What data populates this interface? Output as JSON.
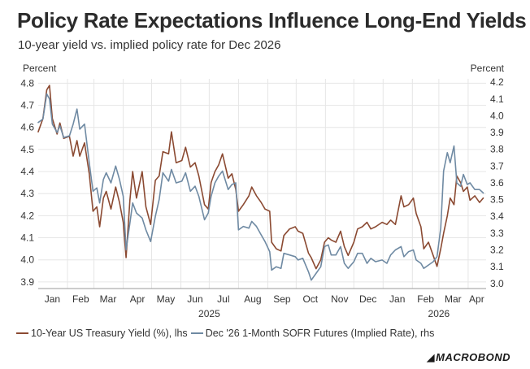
{
  "title": "Policy Rate Expectations Influence Long-End Yields",
  "subtitle": "10-year yield vs. implied policy rate for Dec 2026",
  "brand": "MACROBOND",
  "chart_data": {
    "type": "line",
    "left_axis_label": "Percent",
    "right_axis_label": "Percent",
    "ylim_left": [
      3.87,
      4.82
    ],
    "ylim_right": [
      2.97,
      4.22
    ],
    "yticks_left": [
      "3.9",
      "4.0",
      "4.1",
      "4.2",
      "4.3",
      "4.4",
      "4.5",
      "4.6",
      "4.7",
      "4.8"
    ],
    "yticks_right": [
      "3.0",
      "3.1",
      "3.2",
      "3.3",
      "3.4",
      "3.5",
      "3.6",
      "3.7",
      "3.8",
      "3.9",
      "4.0",
      "4.1",
      "4.2"
    ],
    "xlim": [
      "2025-01-01",
      "2026-04-20"
    ],
    "month_labels": [
      "Jan",
      "Feb",
      "Mar",
      "Apr",
      "May",
      "Jun",
      "Jul",
      "Aug",
      "Sep",
      "Oct",
      "Nov",
      "Dec",
      "Jan",
      "Feb",
      "Mar",
      "Apr"
    ],
    "year_labels": [
      {
        "label": "2025",
        "date": "2025-07-01"
      },
      {
        "label": "2026",
        "date": "2026-03-01"
      }
    ],
    "grid": true,
    "series": [
      {
        "name": "10-Year US Treasury Yield (%), lhs",
        "axis": "left",
        "color": "#8b4a32",
        "points": [
          [
            "2025-01-01",
            4.58
          ],
          [
            "2025-01-06",
            4.64
          ],
          [
            "2025-01-10",
            4.77
          ],
          [
            "2025-01-13",
            4.79
          ],
          [
            "2025-01-16",
            4.64
          ],
          [
            "2025-01-21",
            4.57
          ],
          [
            "2025-01-24",
            4.62
          ],
          [
            "2025-01-28",
            4.55
          ],
          [
            "2025-02-03",
            4.56
          ],
          [
            "2025-02-07",
            4.47
          ],
          [
            "2025-02-11",
            4.54
          ],
          [
            "2025-02-14",
            4.47
          ],
          [
            "2025-02-19",
            4.53
          ],
          [
            "2025-02-24",
            4.39
          ],
          [
            "2025-02-28",
            4.22
          ],
          [
            "2025-03-04",
            4.24
          ],
          [
            "2025-03-07",
            4.15
          ],
          [
            "2025-03-11",
            4.28
          ],
          [
            "2025-03-14",
            4.31
          ],
          [
            "2025-03-19",
            4.23
          ],
          [
            "2025-03-24",
            4.33
          ],
          [
            "2025-03-28",
            4.26
          ],
          [
            "2025-04-01",
            4.17
          ],
          [
            "2025-04-04",
            4.01
          ],
          [
            "2025-04-08",
            4.27
          ],
          [
            "2025-04-11",
            4.4
          ],
          [
            "2025-04-15",
            4.28
          ],
          [
            "2025-04-21",
            4.4
          ],
          [
            "2025-04-25",
            4.24
          ],
          [
            "2025-04-30",
            4.16
          ],
          [
            "2025-05-05",
            4.36
          ],
          [
            "2025-05-09",
            4.38
          ],
          [
            "2025-05-13",
            4.49
          ],
          [
            "2025-05-19",
            4.48
          ],
          [
            "2025-05-22",
            4.58
          ],
          [
            "2025-05-27",
            4.44
          ],
          [
            "2025-06-02",
            4.45
          ],
          [
            "2025-06-06",
            4.51
          ],
          [
            "2025-06-11",
            4.42
          ],
          [
            "2025-06-16",
            4.44
          ],
          [
            "2025-06-20",
            4.38
          ],
          [
            "2025-06-26",
            4.25
          ],
          [
            "2025-06-30",
            4.23
          ],
          [
            "2025-07-03",
            4.35
          ],
          [
            "2025-07-07",
            4.4
          ],
          [
            "2025-07-11",
            4.43
          ],
          [
            "2025-07-15",
            4.48
          ],
          [
            "2025-07-21",
            4.37
          ],
          [
            "2025-07-25",
            4.39
          ],
          [
            "2025-07-29",
            4.32
          ],
          [
            "2025-08-01",
            4.22
          ],
          [
            "2025-08-06",
            4.25
          ],
          [
            "2025-08-12",
            4.29
          ],
          [
            "2025-08-15",
            4.33
          ],
          [
            "2025-08-20",
            4.29
          ],
          [
            "2025-08-25",
            4.26
          ],
          [
            "2025-08-29",
            4.23
          ],
          [
            "2025-09-03",
            4.22
          ],
          [
            "2025-09-05",
            4.08
          ],
          [
            "2025-09-10",
            4.05
          ],
          [
            "2025-09-15",
            4.04
          ],
          [
            "2025-09-18",
            4.11
          ],
          [
            "2025-09-24",
            4.14
          ],
          [
            "2025-09-30",
            4.15
          ],
          [
            "2025-10-03",
            4.13
          ],
          [
            "2025-10-08",
            4.12
          ],
          [
            "2025-10-14",
            4.03
          ],
          [
            "2025-10-17",
            4.01
          ],
          [
            "2025-10-22",
            3.96
          ],
          [
            "2025-10-27",
            4.0
          ],
          [
            "2025-10-31",
            4.08
          ],
          [
            "2025-11-04",
            4.1
          ],
          [
            "2025-11-07",
            4.09
          ],
          [
            "2025-11-12",
            4.08
          ],
          [
            "2025-11-17",
            4.13
          ],
          [
            "2025-11-21",
            4.06
          ],
          [
            "2025-11-25",
            4.02
          ],
          [
            "2025-12-01",
            4.08
          ],
          [
            "2025-12-05",
            4.14
          ],
          [
            "2025-12-10",
            4.15
          ],
          [
            "2025-12-15",
            4.17
          ],
          [
            "2025-12-19",
            4.14
          ],
          [
            "2025-12-24",
            4.15
          ],
          [
            "2025-12-31",
            4.17
          ],
          [
            "2026-01-05",
            4.16
          ],
          [
            "2026-01-09",
            4.18
          ],
          [
            "2026-01-14",
            4.16
          ],
          [
            "2026-01-20",
            4.29
          ],
          [
            "2026-01-23",
            4.24
          ],
          [
            "2026-01-28",
            4.25
          ],
          [
            "2026-02-02",
            4.28
          ],
          [
            "2026-02-05",
            4.21
          ],
          [
            "2026-02-10",
            4.15
          ],
          [
            "2026-02-13",
            4.05
          ],
          [
            "2026-02-18",
            4.08
          ],
          [
            "2026-02-23",
            4.02
          ],
          [
            "2026-02-27",
            3.97
          ],
          [
            "2026-03-03",
            4.05
          ],
          [
            "2026-03-06",
            4.12
          ],
          [
            "2026-03-10",
            4.2
          ],
          [
            "2026-03-13",
            4.28
          ],
          [
            "2026-03-17",
            4.25
          ],
          [
            "2026-03-20",
            4.38
          ],
          [
            "2026-03-24",
            4.35
          ],
          [
            "2026-03-27",
            4.31
          ],
          [
            "2026-03-31",
            4.33
          ],
          [
            "2026-04-03",
            4.27
          ],
          [
            "2026-04-08",
            4.29
          ],
          [
            "2026-04-13",
            4.26
          ],
          [
            "2026-04-17",
            4.28
          ]
        ]
      },
      {
        "name": "Dec '26 1-Month SOFR Futures (Implied Rate), rhs",
        "axis": "right",
        "color": "#6f8aa3",
        "points": [
          [
            "2025-01-01",
            3.96
          ],
          [
            "2025-01-06",
            3.98
          ],
          [
            "2025-01-10",
            4.13
          ],
          [
            "2025-01-13",
            4.1
          ],
          [
            "2025-01-16",
            3.95
          ],
          [
            "2025-01-21",
            3.9
          ],
          [
            "2025-01-24",
            3.94
          ],
          [
            "2025-01-28",
            3.87
          ],
          [
            "2025-02-03",
            3.88
          ],
          [
            "2025-02-07",
            3.95
          ],
          [
            "2025-02-11",
            4.04
          ],
          [
            "2025-02-14",
            3.92
          ],
          [
            "2025-02-19",
            3.95
          ],
          [
            "2025-02-24",
            3.72
          ],
          [
            "2025-02-28",
            3.55
          ],
          [
            "2025-03-04",
            3.57
          ],
          [
            "2025-03-07",
            3.48
          ],
          [
            "2025-03-11",
            3.62
          ],
          [
            "2025-03-14",
            3.66
          ],
          [
            "2025-03-19",
            3.6
          ],
          [
            "2025-03-24",
            3.7
          ],
          [
            "2025-03-28",
            3.62
          ],
          [
            "2025-04-01",
            3.52
          ],
          [
            "2025-04-04",
            3.2
          ],
          [
            "2025-04-08",
            3.36
          ],
          [
            "2025-04-11",
            3.48
          ],
          [
            "2025-04-15",
            3.42
          ],
          [
            "2025-04-21",
            3.39
          ],
          [
            "2025-04-25",
            3.32
          ],
          [
            "2025-04-30",
            3.25
          ],
          [
            "2025-05-05",
            3.4
          ],
          [
            "2025-05-09",
            3.5
          ],
          [
            "2025-05-13",
            3.66
          ],
          [
            "2025-05-19",
            3.61
          ],
          [
            "2025-05-22",
            3.68
          ],
          [
            "2025-05-27",
            3.6
          ],
          [
            "2025-06-02",
            3.61
          ],
          [
            "2025-06-06",
            3.66
          ],
          [
            "2025-06-11",
            3.55
          ],
          [
            "2025-06-16",
            3.58
          ],
          [
            "2025-06-20",
            3.52
          ],
          [
            "2025-06-26",
            3.38
          ],
          [
            "2025-06-30",
            3.42
          ],
          [
            "2025-07-03",
            3.52
          ],
          [
            "2025-07-07",
            3.6
          ],
          [
            "2025-07-11",
            3.64
          ],
          [
            "2025-07-15",
            3.67
          ],
          [
            "2025-07-21",
            3.56
          ],
          [
            "2025-07-25",
            3.59
          ],
          [
            "2025-07-29",
            3.6
          ],
          [
            "2025-08-01",
            3.32
          ],
          [
            "2025-08-06",
            3.34
          ],
          [
            "2025-08-12",
            3.33
          ],
          [
            "2025-08-15",
            3.37
          ],
          [
            "2025-08-20",
            3.34
          ],
          [
            "2025-08-25",
            3.29
          ],
          [
            "2025-08-29",
            3.25
          ],
          [
            "2025-09-03",
            3.19
          ],
          [
            "2025-09-05",
            3.08
          ],
          [
            "2025-09-10",
            3.1
          ],
          [
            "2025-09-15",
            3.09
          ],
          [
            "2025-09-18",
            3.18
          ],
          [
            "2025-09-24",
            3.17
          ],
          [
            "2025-09-30",
            3.16
          ],
          [
            "2025-10-03",
            3.14
          ],
          [
            "2025-10-08",
            3.15
          ],
          [
            "2025-10-14",
            3.07
          ],
          [
            "2025-10-17",
            3.02
          ],
          [
            "2025-10-22",
            3.06
          ],
          [
            "2025-10-27",
            3.1
          ],
          [
            "2025-10-31",
            3.22
          ],
          [
            "2025-11-04",
            3.23
          ],
          [
            "2025-11-07",
            3.17
          ],
          [
            "2025-11-12",
            3.17
          ],
          [
            "2025-11-17",
            3.22
          ],
          [
            "2025-11-21",
            3.12
          ],
          [
            "2025-11-25",
            3.09
          ],
          [
            "2025-12-01",
            3.13
          ],
          [
            "2025-12-05",
            3.18
          ],
          [
            "2025-12-10",
            3.18
          ],
          [
            "2025-12-15",
            3.12
          ],
          [
            "2025-12-19",
            3.15
          ],
          [
            "2025-12-24",
            3.13
          ],
          [
            "2025-12-31",
            3.14
          ],
          [
            "2026-01-05",
            3.12
          ],
          [
            "2026-01-09",
            3.17
          ],
          [
            "2026-01-14",
            3.2
          ],
          [
            "2026-01-20",
            3.22
          ],
          [
            "2026-01-23",
            3.16
          ],
          [
            "2026-01-28",
            3.19
          ],
          [
            "2026-02-02",
            3.2
          ],
          [
            "2026-02-05",
            3.14
          ],
          [
            "2026-02-10",
            3.12
          ],
          [
            "2026-02-13",
            3.09
          ],
          [
            "2026-02-18",
            3.11
          ],
          [
            "2026-02-23",
            3.13
          ],
          [
            "2026-02-27",
            3.16
          ],
          [
            "2026-03-03",
            3.33
          ],
          [
            "2026-03-06",
            3.67
          ],
          [
            "2026-03-10",
            3.78
          ],
          [
            "2026-03-13",
            3.72
          ],
          [
            "2026-03-17",
            3.82
          ],
          [
            "2026-03-20",
            3.6
          ],
          [
            "2026-03-24",
            3.58
          ],
          [
            "2026-03-27",
            3.65
          ],
          [
            "2026-03-31",
            3.59
          ],
          [
            "2026-04-03",
            3.6
          ],
          [
            "2026-04-08",
            3.56
          ],
          [
            "2026-04-13",
            3.56
          ],
          [
            "2026-04-17",
            3.54
          ]
        ]
      }
    ]
  }
}
